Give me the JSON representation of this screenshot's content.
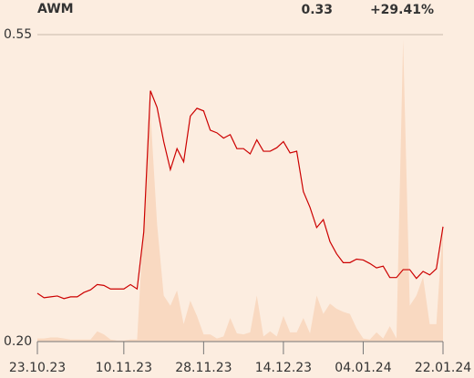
{
  "chart_data": {
    "type": "line",
    "title": "AWM",
    "last_price": "0.33",
    "change": "+29.41%",
    "change_color": "#1a9a1a",
    "categories": [
      "23.10.23",
      null,
      null,
      null,
      null,
      null,
      null,
      null,
      null,
      null,
      null,
      null,
      null,
      "10.11.23",
      null,
      null,
      null,
      null,
      null,
      null,
      null,
      null,
      null,
      null,
      null,
      "28.11.23",
      null,
      null,
      null,
      null,
      null,
      null,
      null,
      null,
      null,
      null,
      null,
      "14.12.23",
      null,
      null,
      null,
      null,
      null,
      null,
      null,
      null,
      null,
      null,
      null,
      "04.01.24",
      null,
      null,
      null,
      null,
      null,
      null,
      null,
      null,
      null,
      null,
      null,
      "22.01.24"
    ],
    "series": [
      {
        "color": "#cc0000",
        "values": [
          0.255,
          0.25,
          0.251,
          0.252,
          0.249,
          0.251,
          0.251,
          0.256,
          0.259,
          0.265,
          0.264,
          0.26,
          0.26,
          0.26,
          0.265,
          0.26,
          0.325,
          0.486,
          0.467,
          0.428,
          0.396,
          0.42,
          0.405,
          0.457,
          0.466,
          0.463,
          0.441,
          0.438,
          0.432,
          0.436,
          0.42,
          0.42,
          0.414,
          0.43,
          0.417,
          0.417,
          0.421,
          0.428,
          0.415,
          0.417,
          0.371,
          0.353,
          0.33,
          0.339,
          0.314,
          0.3,
          0.29,
          0.29,
          0.294,
          0.293,
          0.289,
          0.284,
          0.286,
          0.273,
          0.273,
          0.282,
          0.282,
          0.272,
          0.28,
          0.276,
          0.283,
          0.331
        ]
      },
      {
        "type": "area",
        "axis": "y2",
        "color": "#f9d9c1",
        "values": [
          3,
          3,
          4,
          4,
          3,
          2,
          2,
          2,
          2,
          10,
          7,
          2,
          1,
          1,
          2,
          2,
          120,
          225,
          115,
          45,
          35,
          50,
          17,
          40,
          25,
          7,
          7,
          3,
          5,
          23,
          8,
          7,
          9,
          45,
          5,
          10,
          5,
          25,
          9,
          9,
          23,
          8,
          45,
          27,
          37,
          32,
          29,
          27,
          13,
          3,
          2,
          9,
          3,
          15,
          3,
          295,
          35,
          45,
          63,
          17,
          17,
          115
        ]
      }
    ],
    "ylim": [
      0.2,
      0.55
    ],
    "yticks": [
      {
        "value": 0.2,
        "label": "0.20"
      },
      0.55
    ],
    "y2lim": [
      0,
      300
    ],
    "grid": true
  }
}
